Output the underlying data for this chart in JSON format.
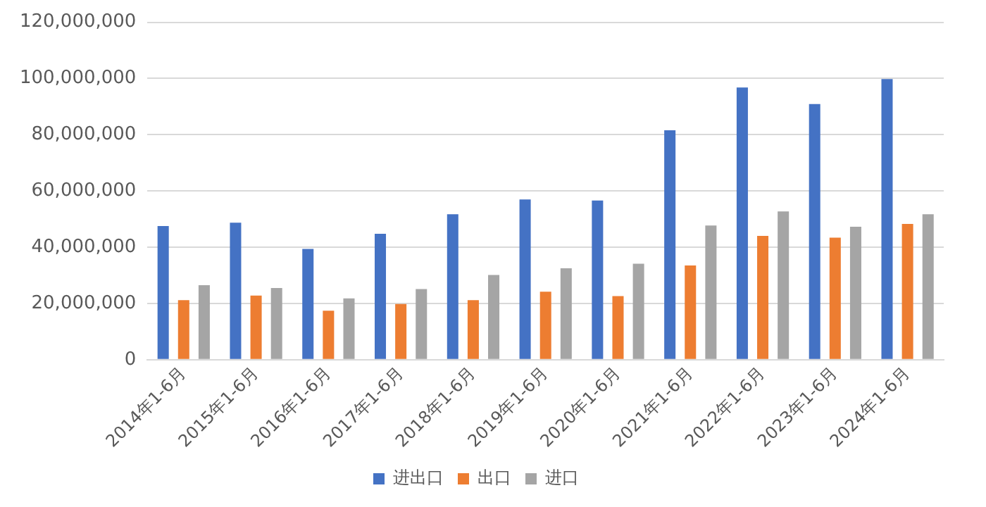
{
  "chart_data": {
    "type": "bar",
    "categories": [
      "2014年1-6月",
      "2015年1-6月",
      "2016年1-6月",
      "2017年1-6月",
      "2018年1-6月",
      "2019年1-6月",
      "2020年1-6月",
      "2021年1-6月",
      "2022年1-6月",
      "2023年1-6月",
      "2024年1-6月"
    ],
    "series": [
      {
        "name": "进出口",
        "color": "#4472c4",
        "values": [
          47500000,
          48700000,
          39400000,
          44800000,
          51700000,
          57000000,
          56600000,
          81600000,
          96800000,
          90900000,
          99800000
        ]
      },
      {
        "name": "出口",
        "color": "#ed7d31",
        "values": [
          21200000,
          22800000,
          17400000,
          19800000,
          21200000,
          24200000,
          22600000,
          33500000,
          44000000,
          43400000,
          48300000
        ]
      },
      {
        "name": "进口",
        "color": "#a5a5a5",
        "values": [
          26500000,
          25500000,
          21800000,
          25100000,
          30100000,
          32500000,
          34100000,
          47700000,
          52700000,
          47300000,
          51700000
        ]
      }
    ],
    "ylim": [
      0,
      120000000
    ],
    "yticks": [
      {
        "value": 0,
        "label": "0"
      },
      {
        "value": 20000000,
        "label": "20,000,000"
      },
      {
        "value": 40000000,
        "label": "40,000,000"
      },
      {
        "value": 60000000,
        "label": "60,000,000"
      },
      {
        "value": 80000000,
        "label": "80,000,000"
      },
      {
        "value": 100000000,
        "label": "100,000,000"
      },
      {
        "value": 120000000,
        "label": "120,000,000"
      }
    ],
    "grid": "y",
    "legend": "bottom"
  }
}
